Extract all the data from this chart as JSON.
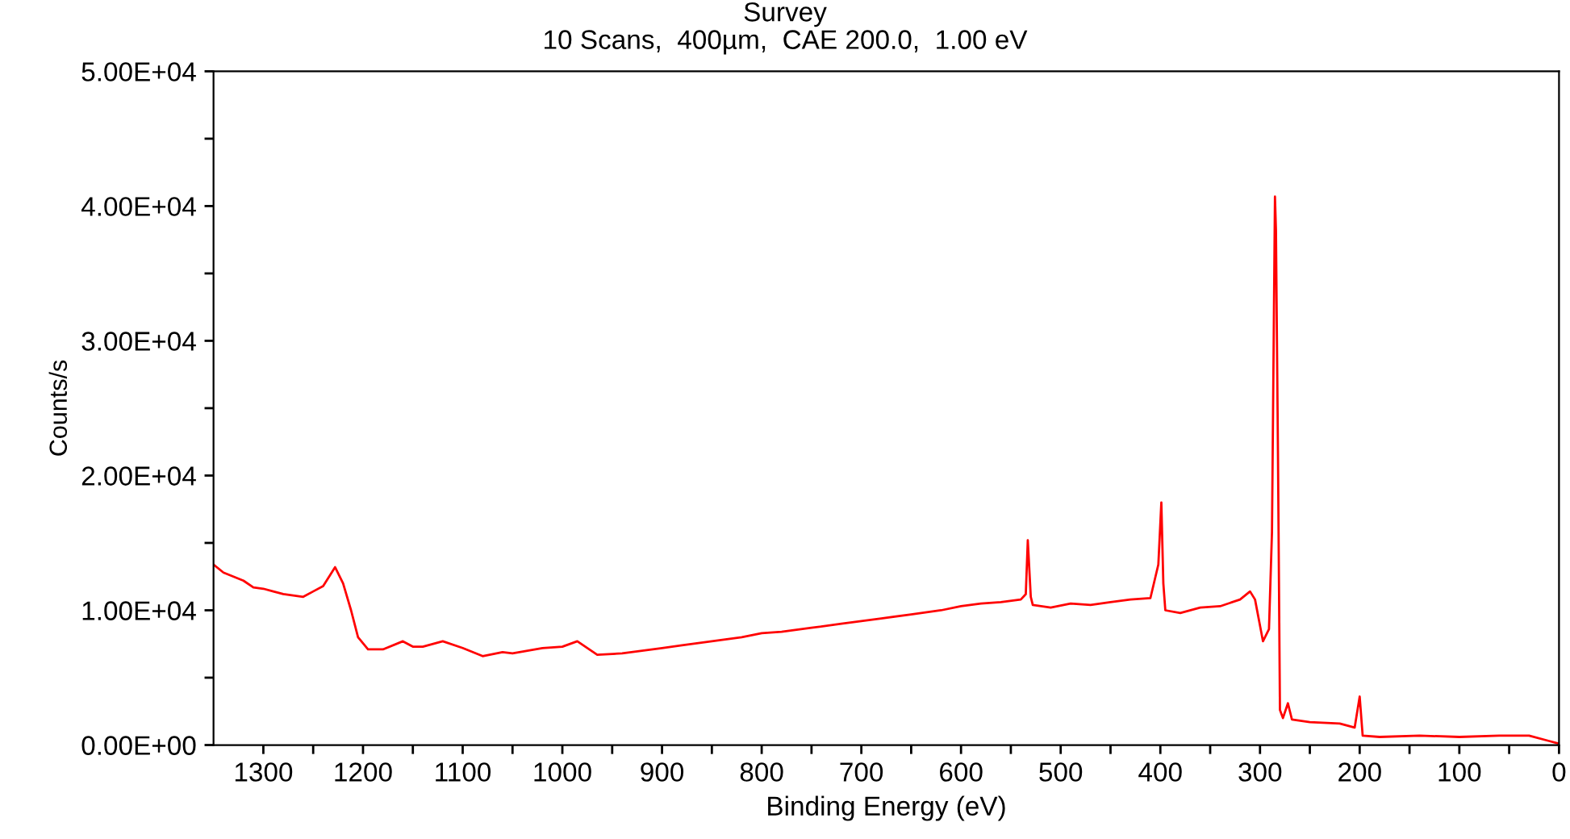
{
  "chart_data": {
    "type": "line",
    "title": "Survey",
    "subtitle": "10 Scans,  400µm,  CAE 200.0,  1.00 eV",
    "xlabel": "Binding Energy (eV)",
    "ylabel": "Counts/s",
    "x": [
      1350,
      1340,
      1330,
      1320,
      1310,
      1300,
      1290,
      1280,
      1270,
      1260,
      1250,
      1240,
      1228,
      1220,
      1212,
      1205,
      1195,
      1180,
      1160,
      1150,
      1140,
      1120,
      1100,
      1080,
      1060,
      1050,
      1020,
      1000,
      985,
      965,
      940,
      920,
      900,
      880,
      850,
      820,
      800,
      780,
      750,
      720,
      700,
      680,
      650,
      620,
      600,
      580,
      560,
      540,
      535,
      533,
      530,
      528,
      510,
      490,
      470,
      450,
      430,
      410,
      402,
      399,
      397,
      395,
      380,
      360,
      340,
      320,
      310,
      305,
      297,
      291,
      288,
      286,
      285,
      284,
      282,
      280,
      277,
      272,
      268,
      250,
      220,
      205,
      200,
      197,
      180,
      140,
      100,
      60,
      30,
      10,
      0
    ],
    "series": [
      {
        "color": "#ff0000",
        "values": [
          13400,
          12800,
          12500,
          12200,
          11700,
          11600,
          11400,
          11200,
          11100,
          11000,
          11400,
          11800,
          13200,
          12000,
          10000,
          8000,
          7100,
          7100,
          7700,
          7300,
          7300,
          7700,
          7200,
          6600,
          6900,
          6800,
          7200,
          7300,
          7700,
          6700,
          6800,
          7000,
          7200,
          7400,
          7700,
          8000,
          8300,
          8400,
          8700,
          9000,
          9200,
          9400,
          9700,
          10000,
          10300,
          10500,
          10600,
          10800,
          11200,
          15200,
          11000,
          10400,
          10200,
          10500,
          10400,
          10600,
          10800,
          10900,
          13400,
          18000,
          12000,
          10000,
          9800,
          10200,
          10300,
          10800,
          11400,
          10800,
          7700,
          8600,
          15800,
          32300,
          40700,
          38200,
          21800,
          2600,
          2000,
          3100,
          1900,
          1700,
          1600,
          1300,
          3600,
          700,
          600,
          700,
          600,
          700,
          700,
          300,
          100
        ]
      }
    ],
    "xlim": [
      1350,
      0
    ],
    "ylim": [
      0,
      50000
    ],
    "xticks": [
      {
        "value": 1300,
        "label": "1300"
      },
      {
        "value": 1250,
        "label": null
      },
      {
        "value": 1200,
        "label": "1200"
      },
      {
        "value": 1150,
        "label": null
      },
      {
        "value": 1100,
        "label": "1100"
      },
      {
        "value": 1050,
        "label": null
      },
      {
        "value": 1000,
        "label": "1000"
      },
      {
        "value": 950,
        "label": null
      },
      {
        "value": 900,
        "label": "900"
      },
      {
        "value": 850,
        "label": null
      },
      {
        "value": 800,
        "label": "800"
      },
      {
        "value": 750,
        "label": null
      },
      {
        "value": 700,
        "label": "700"
      },
      {
        "value": 650,
        "label": null
      },
      {
        "value": 600,
        "label": "600"
      },
      {
        "value": 550,
        "label": null
      },
      {
        "value": 500,
        "label": "500"
      },
      {
        "value": 450,
        "label": null
      },
      {
        "value": 400,
        "label": "400"
      },
      {
        "value": 350,
        "label": null
      },
      {
        "value": 300,
        "label": "300"
      },
      {
        "value": 250,
        "label": null
      },
      {
        "value": 200,
        "label": "200"
      },
      {
        "value": 150,
        "label": null
      },
      {
        "value": 100,
        "label": "100"
      },
      {
        "value": 50,
        "label": null
      },
      {
        "value": 0,
        "label": "0"
      }
    ],
    "yticks": [
      {
        "value": 0,
        "label": "0.00E+00"
      },
      {
        "value": 5000,
        "label": null
      },
      {
        "value": 10000,
        "label": "1.00E+04"
      },
      {
        "value": 15000,
        "label": null
      },
      {
        "value": 20000,
        "label": "2.00E+04"
      },
      {
        "value": 25000,
        "label": null
      },
      {
        "value": 30000,
        "label": "3.00E+04"
      },
      {
        "value": 35000,
        "label": null
      },
      {
        "value": 40000,
        "label": "4.00E+04"
      },
      {
        "value": 45000,
        "label": null
      },
      {
        "value": 50000,
        "label": "5.00E+04"
      }
    ],
    "grid": false,
    "legend": false
  }
}
